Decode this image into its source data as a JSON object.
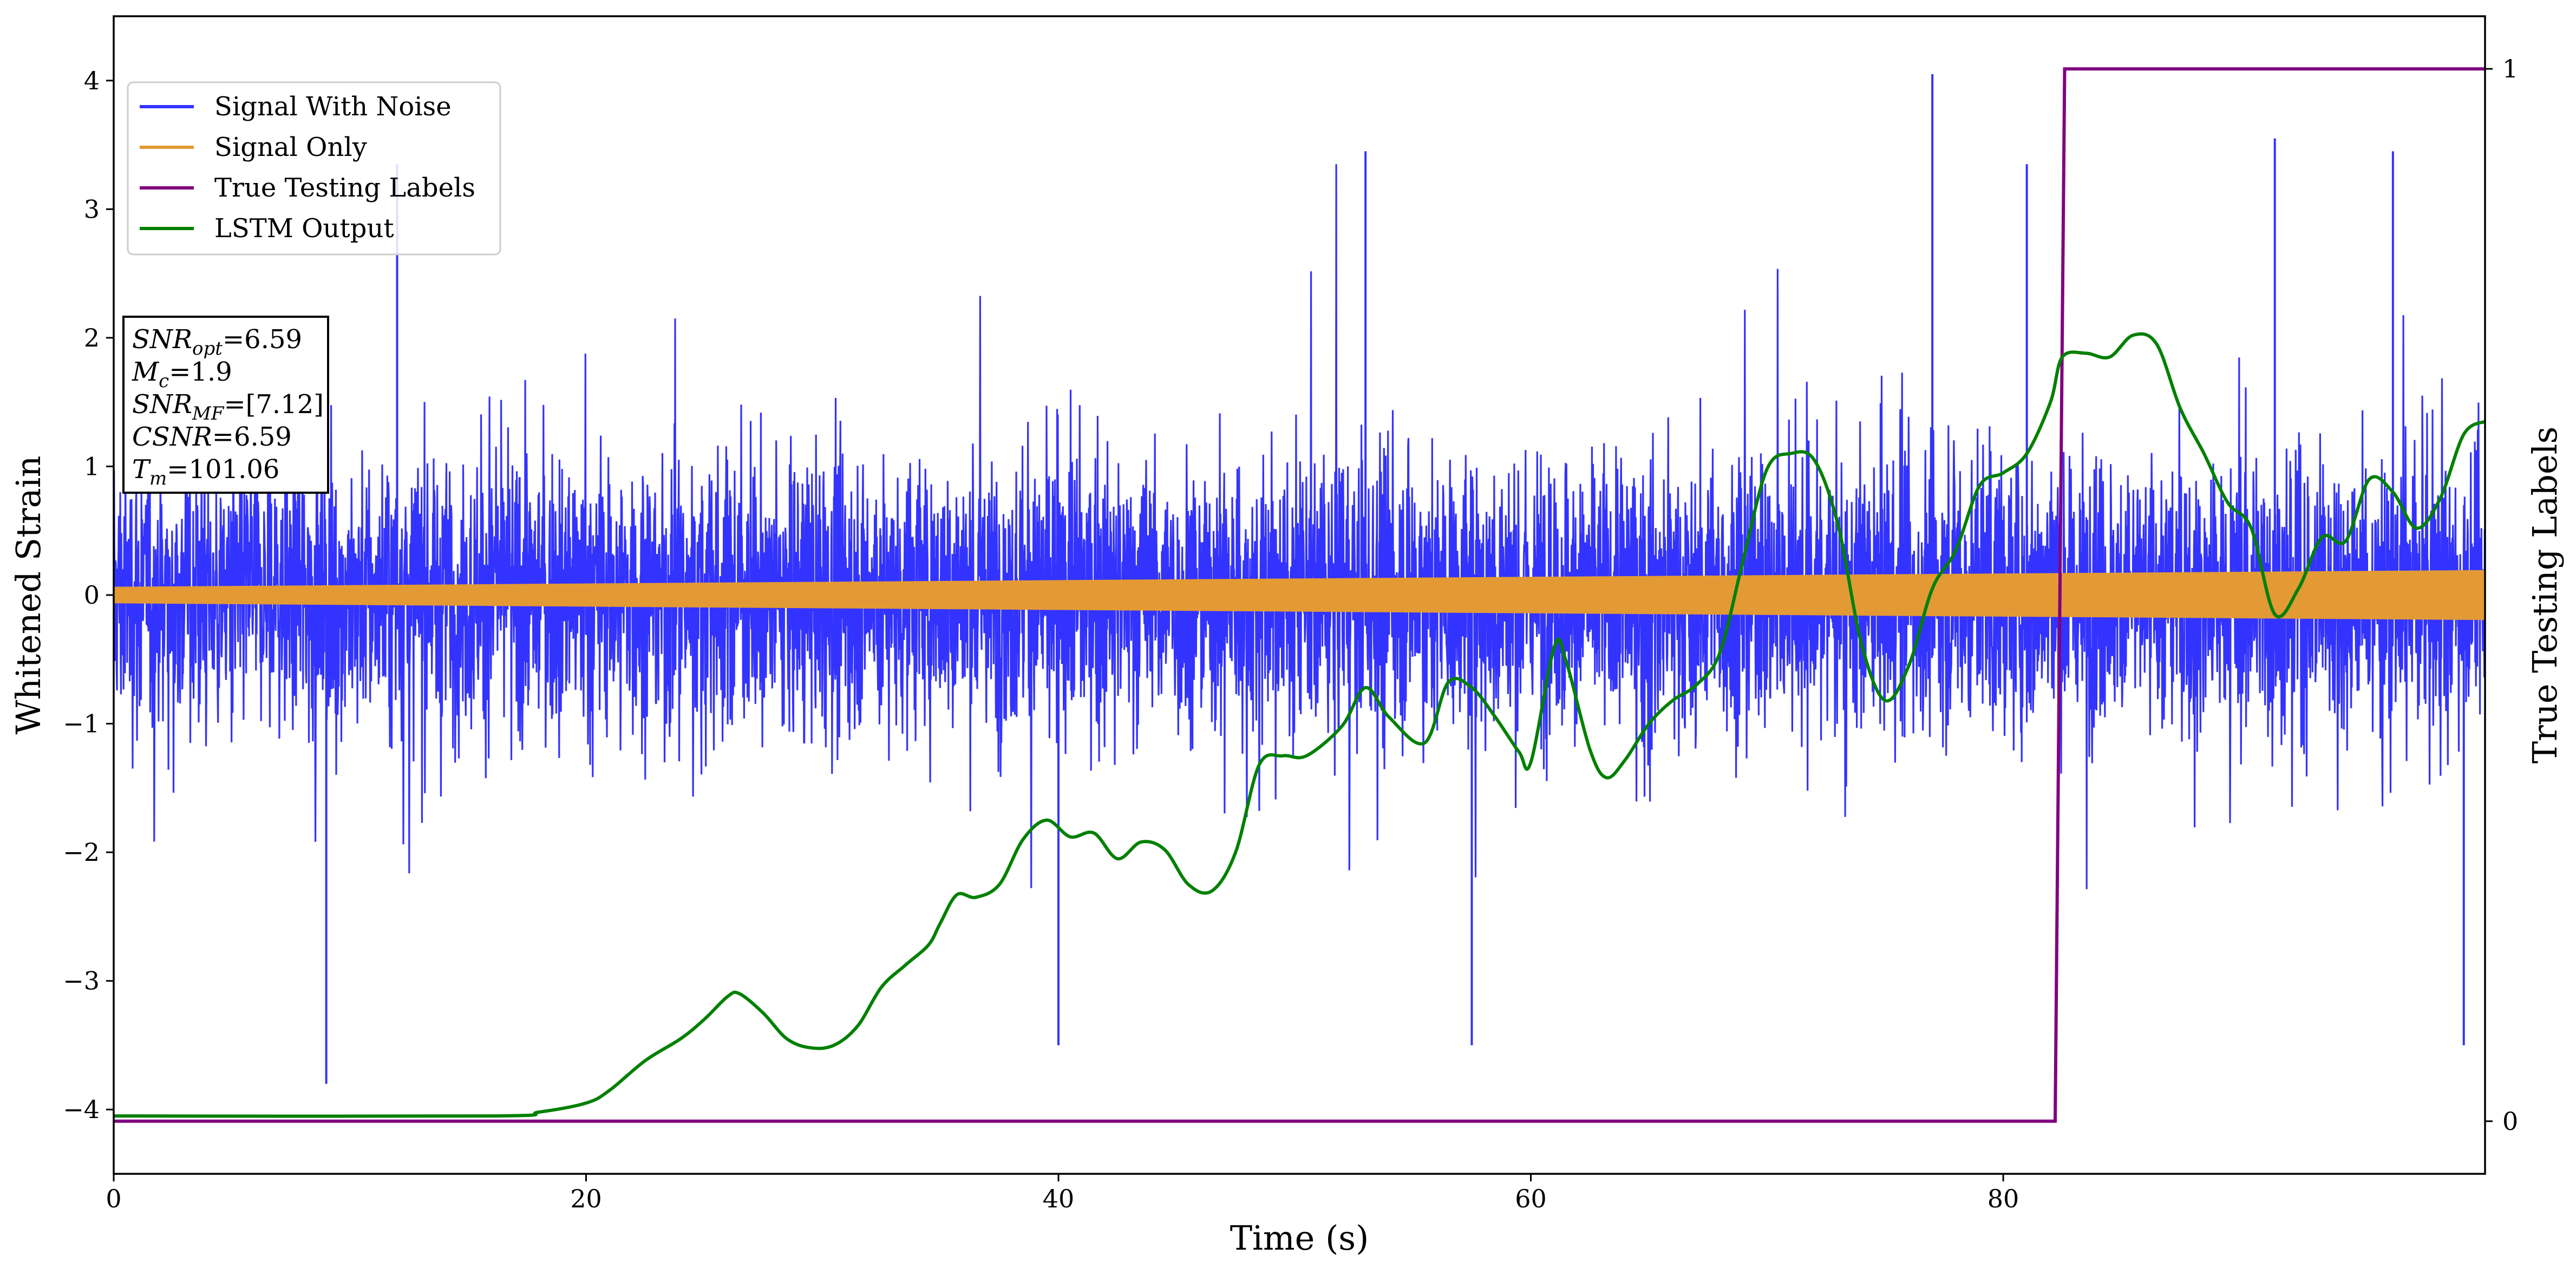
{
  "chart_data": {
    "type": "line",
    "xlabel": "Time (s)",
    "ylabel": "Whitened Strain",
    "y2label": "True Testing Labels",
    "xlim": [
      0,
      100.4
    ],
    "ylim": [
      -4.5,
      4.5
    ],
    "y2lim": [
      -0.05,
      1.05
    ],
    "x_ticks": [
      0,
      20,
      40,
      60,
      80
    ],
    "y_ticks": [
      -4,
      -3,
      -2,
      -1,
      0,
      1,
      2,
      3,
      4
    ],
    "y2_ticks": [
      0,
      1
    ],
    "grid": false,
    "legend_position": "top-left",
    "legend": [
      "Signal With Noise",
      "Signal Only",
      "True Testing Labels",
      "LSTM Output"
    ],
    "colors": {
      "noise": "#3333ff",
      "signal": "#e39a34",
      "labels": "#800080",
      "lstm": "#008000"
    },
    "series": [
      {
        "name": "Signal With Noise",
        "kind": "noise-band",
        "axis": "left",
        "typical_range": [
          -1.3,
          1.3
        ],
        "notable_peaks": [
          {
            "x": 77.0,
            "y": 4.05
          },
          {
            "x": 9.0,
            "y": -3.8
          },
          {
            "x": 40.0,
            "y": -3.5
          },
          {
            "x": 57.5,
            "y": -3.5
          },
          {
            "x": 99.5,
            "y": -3.5
          },
          {
            "x": 12.0,
            "y": 3.35
          },
          {
            "x": 53.0,
            "y": 3.45
          },
          {
            "x": 81.0,
            "y": 3.35
          },
          {
            "x": 91.5,
            "y": 3.55
          },
          {
            "x": 96.5,
            "y": 3.45
          }
        ]
      },
      {
        "name": "Signal Only",
        "kind": "envelope",
        "axis": "left",
        "amplitude_start": 0.06,
        "amplitude_end": 0.19
      },
      {
        "name": "True Testing Labels",
        "axis": "right",
        "points": [
          [
            0,
            0
          ],
          [
            82.2,
            0
          ],
          [
            82.6,
            1
          ],
          [
            100.4,
            1
          ]
        ]
      },
      {
        "name": "LSTM Output",
        "axis": "left",
        "points": [
          [
            0,
            -4.05
          ],
          [
            16,
            -4.05
          ],
          [
            18,
            -4.02
          ],
          [
            20,
            -3.95
          ],
          [
            21,
            -3.85
          ],
          [
            22.5,
            -3.62
          ],
          [
            24,
            -3.45
          ],
          [
            25,
            -3.3
          ],
          [
            26,
            -3.12
          ],
          [
            26.5,
            -3.1
          ],
          [
            27.5,
            -3.25
          ],
          [
            28.5,
            -3.45
          ],
          [
            29.5,
            -3.52
          ],
          [
            30.5,
            -3.5
          ],
          [
            31.5,
            -3.35
          ],
          [
            32.5,
            -3.05
          ],
          [
            33.5,
            -2.88
          ],
          [
            34.5,
            -2.72
          ],
          [
            35,
            -2.55
          ],
          [
            35.7,
            -2.33
          ],
          [
            36.5,
            -2.35
          ],
          [
            37.5,
            -2.25
          ],
          [
            38.5,
            -1.9
          ],
          [
            39.5,
            -1.75
          ],
          [
            40.5,
            -1.88
          ],
          [
            41.5,
            -1.85
          ],
          [
            42.5,
            -2.05
          ],
          [
            43.5,
            -1.92
          ],
          [
            44.5,
            -1.98
          ],
          [
            45.5,
            -2.25
          ],
          [
            46.5,
            -2.3
          ],
          [
            47.5,
            -2.0
          ],
          [
            48.5,
            -1.32
          ],
          [
            49.5,
            -1.25
          ],
          [
            50.5,
            -1.25
          ],
          [
            52,
            -1.02
          ],
          [
            53,
            -0.72
          ],
          [
            54,
            -0.95
          ],
          [
            55.5,
            -1.15
          ],
          [
            56.5,
            -0.68
          ],
          [
            57.5,
            -0.72
          ],
          [
            58.5,
            -0.95
          ],
          [
            59.5,
            -1.22
          ],
          [
            60,
            -1.3
          ],
          [
            61,
            -0.4
          ],
          [
            61.5,
            -0.52
          ],
          [
            62.5,
            -1.2
          ],
          [
            63.2,
            -1.42
          ],
          [
            64,
            -1.28
          ],
          [
            65,
            -1.0
          ],
          [
            66,
            -0.82
          ],
          [
            67,
            -0.7
          ],
          [
            68,
            -0.45
          ],
          [
            69,
            0.28
          ],
          [
            70,
            0.98
          ],
          [
            71,
            1.1
          ],
          [
            72,
            1.05
          ],
          [
            73,
            0.55
          ],
          [
            74,
            -0.38
          ],
          [
            75,
            -0.82
          ],
          [
            76,
            -0.55
          ],
          [
            77,
            0.05
          ],
          [
            78,
            0.35
          ],
          [
            79,
            0.85
          ],
          [
            80,
            0.95
          ],
          [
            81,
            1.1
          ],
          [
            82,
            1.5
          ],
          [
            82.5,
            1.85
          ],
          [
            83.5,
            1.88
          ],
          [
            84.5,
            1.85
          ],
          [
            85.5,
            2.02
          ],
          [
            86.5,
            1.95
          ],
          [
            87.5,
            1.45
          ],
          [
            88.5,
            1.1
          ],
          [
            89.5,
            0.72
          ],
          [
            90.5,
            0.52
          ],
          [
            91.5,
            -0.15
          ],
          [
            92.5,
            0.05
          ],
          [
            93.5,
            0.45
          ],
          [
            94.5,
            0.42
          ],
          [
            95.5,
            0.9
          ],
          [
            96.5,
            0.8
          ],
          [
            97.5,
            0.52
          ],
          [
            98.5,
            0.75
          ],
          [
            99.5,
            1.25
          ],
          [
            100.4,
            1.35
          ]
        ]
      }
    ]
  },
  "infobox": {
    "lines": [
      {
        "label": "SNR",
        "sub": "opt",
        "value": "=6.59"
      },
      {
        "label": "M",
        "sub": "c",
        "value": "=1.9"
      },
      {
        "label": "SNR",
        "sub": "MF",
        "value": "=[7.12]"
      },
      {
        "label": "CSNR",
        "sub": "",
        "value": "=6.59"
      },
      {
        "label": "T",
        "sub": "m",
        "value": "=101.06"
      }
    ]
  }
}
